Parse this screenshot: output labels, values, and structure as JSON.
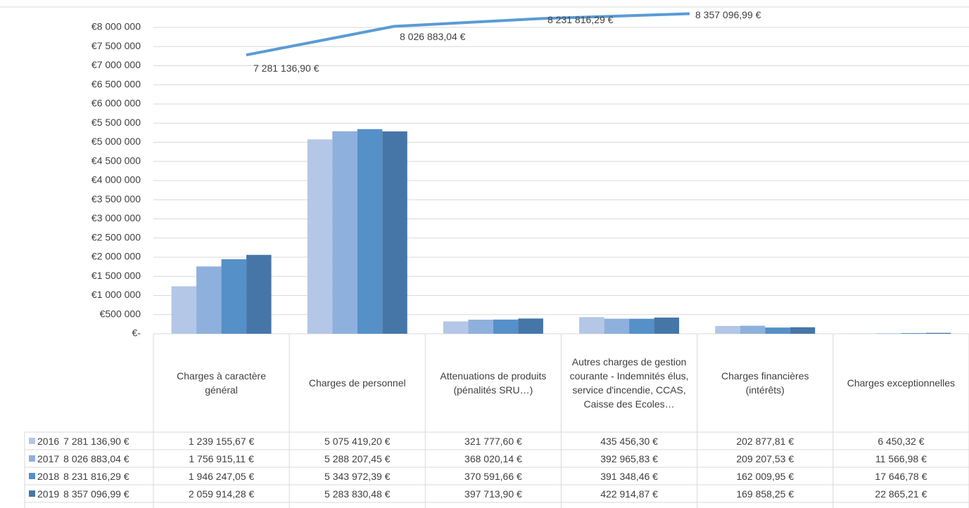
{
  "chart_data": {
    "type": "bar",
    "categories": [
      "Charges à caractère général",
      "Charges de personnel",
      "Attenuations de produits (pénalités SRU…)",
      "Autres charges de gestion courante  - Indemnités élus, service d'incendie, CCAS, Caisse des Ecoles…",
      "Charges financières (intérêts)",
      "Charges exceptionnelles"
    ],
    "series": [
      {
        "name": "2016",
        "color": "#b4c7e7",
        "values": [
          1239155.67,
          5075419.2,
          321777.6,
          435456.3,
          202877.81,
          6450.32
        ],
        "value_labels": [
          "1 239 155,67 €",
          "5 075 419,20 €",
          "321 777,60 €",
          "435 456,30 €",
          "202 877,81 €",
          "6 450,32 €"
        ]
      },
      {
        "name": "2017",
        "color": "#8eb0dc",
        "values": [
          1756915.11,
          5288207.45,
          368020.14,
          392965.83,
          209207.53,
          11566.98
        ],
        "value_labels": [
          "1 756 915,11 €",
          "5 288 207,45 €",
          "368 020,14 €",
          "392 965,83 €",
          "209 207,53 €",
          "11 566,98 €"
        ]
      },
      {
        "name": "2018",
        "color": "#5590c8",
        "values": [
          1946247.05,
          5343972.39,
          370591.66,
          391348.46,
          162009.95,
          17646.78
        ],
        "value_labels": [
          "1 946 247,05 €",
          "5 343 972,39 €",
          "370 591,66 €",
          "391 348,46 €",
          "162 009,95 €",
          "17 646,78 €"
        ]
      },
      {
        "name": "2019",
        "color": "#4676a8",
        "values": [
          2059914.28,
          5283830.48,
          397713.9,
          422914.87,
          169858.25,
          22865.21
        ],
        "value_labels": [
          "2 059 914,28 €",
          "5 283 830,48 €",
          "397 713,90 €",
          "422 914,87 €",
          "169 858,25 €",
          "22 865,21 €"
        ]
      }
    ],
    "total": {
      "color": "#5b9bd5",
      "values": [
        7281136.9,
        8026883.04,
        8231816.29,
        8357096.99
      ],
      "value_labels": [
        "7 281 136,90 €",
        "8 026 883,04 €",
        "8 231 816,29 €",
        "8 357 096,99 €"
      ]
    },
    "ylim": [
      0,
      8500000
    ],
    "yticks": [
      {
        "value": 0,
        "label": "€-"
      },
      {
        "value": 500000,
        "label": "€500 000"
      },
      {
        "value": 1000000,
        "label": "€1 000 000"
      },
      {
        "value": 1500000,
        "label": "€1 500 000"
      },
      {
        "value": 2000000,
        "label": "€2 000 000"
      },
      {
        "value": 2500000,
        "label": "€2 500 000"
      },
      {
        "value": 3000000,
        "label": "€3 000 000"
      },
      {
        "value": 3500000,
        "label": "€3 500 000"
      },
      {
        "value": 4000000,
        "label": "€4 000 000"
      },
      {
        "value": 4500000,
        "label": "€4 500 000"
      },
      {
        "value": 5000000,
        "label": "€5 000 000"
      },
      {
        "value": 5500000,
        "label": "€5 500 000"
      },
      {
        "value": 6000000,
        "label": "€6 000 000"
      },
      {
        "value": 6500000,
        "label": "€6 500 000"
      },
      {
        "value": 7000000,
        "label": "€7 000 000"
      },
      {
        "value": 7500000,
        "label": "€7 500 000"
      },
      {
        "value": 8000000,
        "label": "€8 000 000"
      }
    ],
    "grid": true
  }
}
